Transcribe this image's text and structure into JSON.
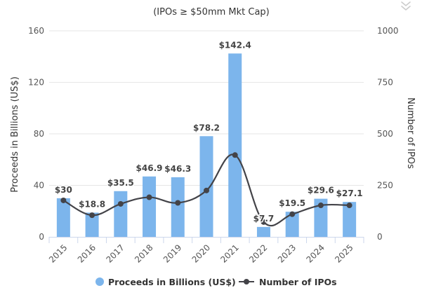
{
  "colors": {
    "bar": "#7cb5ec",
    "line": "#434348",
    "grid": "#e6e6e6",
    "axis_line": "#ccd6eb",
    "menu_icon": "#cccccc"
  },
  "menu": {
    "icon": "chevron-double-down-icon"
  },
  "chart_data": {
    "type": "bar",
    "subtitle": "(IPOs ≥ $50mm Mkt Cap)",
    "categories": [
      "2015",
      "2016",
      "2017",
      "2018",
      "2019",
      "2020",
      "2021",
      "2022",
      "2023",
      "2024",
      "2025"
    ],
    "series": [
      {
        "name": "Proceeds in Billions (US$)",
        "kind": "bar",
        "axis": "left",
        "values": [
          30,
          18.8,
          35.5,
          46.9,
          46.3,
          78.2,
          142.4,
          7.7,
          19.5,
          29.6,
          27.1
        ],
        "labels": [
          "$30",
          "$18.8",
          "$35.5",
          "$46.9",
          "$46.3",
          "$78.2",
          "$142.4",
          "$7.7",
          "$19.5",
          "$29.6",
          "$27.1"
        ]
      },
      {
        "name": "Number of IPOs",
        "kind": "line",
        "axis": "right",
        "values": [
          177,
          105,
          160,
          192,
          165,
          225,
          397,
          72,
          110,
          153,
          153
        ]
      }
    ],
    "y_left": {
      "title": "Proceeds in Billions (US$)",
      "min": 0,
      "max": 160,
      "ticks": [
        0,
        40,
        80,
        120,
        160
      ],
      "tick_labels": [
        "0",
        "40",
        "80",
        "120",
        "160"
      ]
    },
    "y_right": {
      "title": "Number of IPOs",
      "min": 0,
      "max": 1000,
      "ticks": [
        0,
        250,
        500,
        750,
        1000
      ],
      "tick_labels": [
        "0",
        "250",
        "500",
        "750",
        "1000"
      ]
    },
    "legend_position": "bottom-center",
    "grid": true
  }
}
